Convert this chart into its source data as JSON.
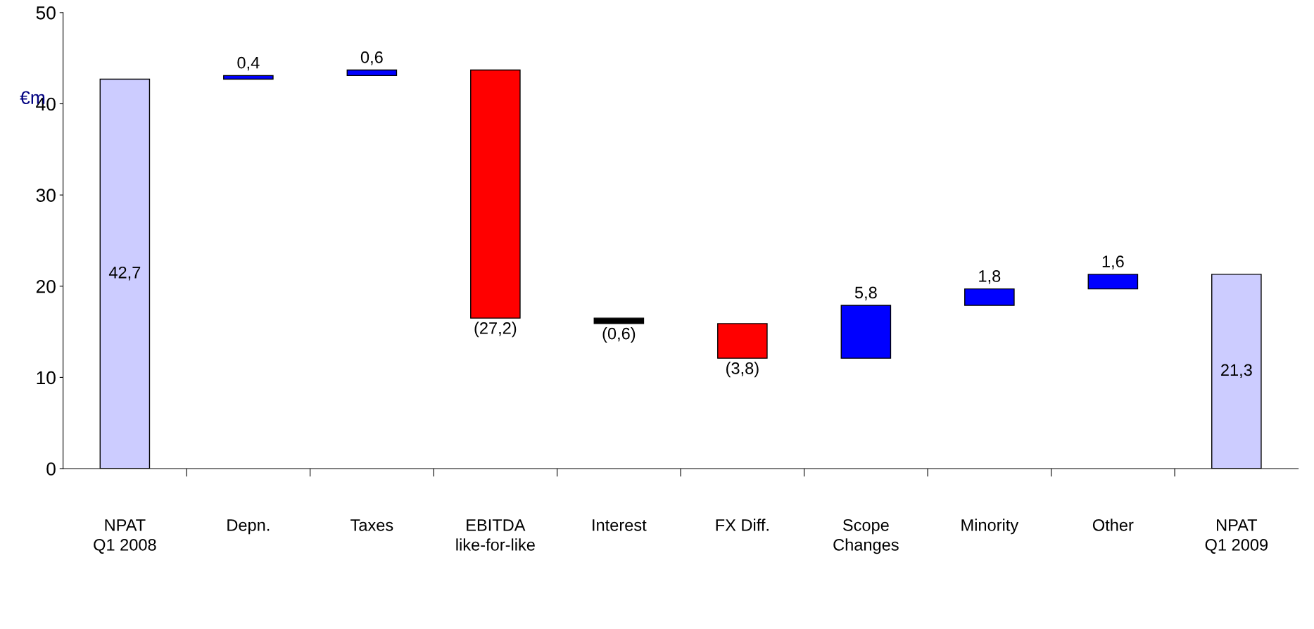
{
  "chart_data": {
    "type": "bar",
    "ylabel": "€m",
    "categories": [
      "NPAT\nQ1 2008",
      "Depn.",
      "Taxes",
      "EBITDA\nlike-for-like",
      "Interest",
      "FX Diff.",
      "Scope\nChanges",
      "Minority",
      "Other",
      "NPAT\nQ1 2009"
    ],
    "values": [
      42.7,
      0.4,
      0.6,
      -27.2,
      -0.6,
      -3.8,
      5.8,
      1.8,
      1.6,
      21.3
    ],
    "base": [
      0,
      42.7,
      43.1,
      43.7,
      16.5,
      15.9,
      12.1,
      17.9,
      19.7,
      0
    ],
    "colors": [
      "#ccccff",
      "#0000ff",
      "#0000ff",
      "#ff0000",
      "#000000",
      "#ff0000",
      "#0000ff",
      "#0000ff",
      "#0000ff",
      "#ccccff"
    ],
    "value_labels": [
      "42,7",
      "0,4",
      "0,6",
      "(27,2)",
      "(0,6)",
      "(3,8)",
      "5,8",
      "1,8",
      "1,6",
      "21,3"
    ],
    "ylim": [
      0,
      50
    ],
    "yticks": [
      0,
      10,
      20,
      30,
      40,
      50
    ],
    "grid": false
  }
}
